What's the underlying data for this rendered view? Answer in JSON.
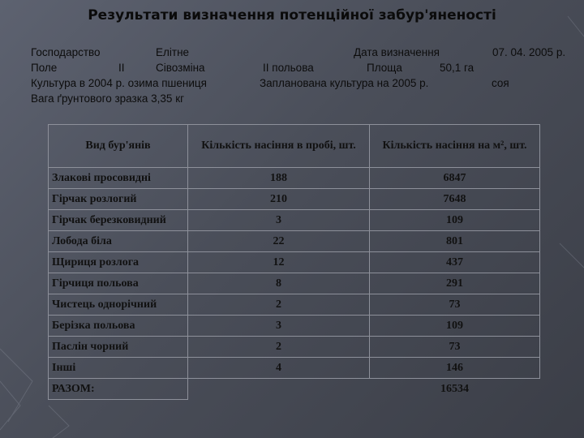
{
  "title": "Результати визначення потенційної забур'яненості",
  "info": {
    "farm_label": "Господарство",
    "farm_value": "Елітне",
    "date_label": "Дата визначення",
    "date_value": "07. 04. 2005 р.",
    "field_label": "Поле",
    "field_number": "ІІ",
    "rotation_label": "Сівозміна",
    "rotation_value": "ІІ польова",
    "area_label": "Площа",
    "area_value": "50,1 га",
    "crop_2004": "Культура в 2004 р. озима пшениця",
    "crop_2005_label": "Запланована культура на 2005 р.",
    "crop_2005_value": "соя",
    "sample_weight": "Вага ґрунтового зразка 3,35 кг"
  },
  "table": {
    "headers": [
      "Вид бур'янів",
      "Кількість насіння в пробі, шт.",
      "Кількість насіння на м², шт."
    ],
    "rows": [
      [
        "Злакові просовидні",
        "188",
        "6847"
      ],
      [
        "Гірчак розлогий",
        "210",
        "7648"
      ],
      [
        "Гірчак березковидний",
        "3",
        "109"
      ],
      [
        "Лобода біла",
        "22",
        "801"
      ],
      [
        "Щириця розлога",
        "12",
        "437"
      ],
      [
        "Гірчиця польова",
        "8",
        "291"
      ],
      [
        "Чистець однорічний",
        "2",
        "73"
      ],
      [
        "Берізка польова",
        "3",
        "109"
      ],
      [
        "Паслін чорний",
        "2",
        "73"
      ],
      [
        "Інші",
        "4",
        "146"
      ]
    ],
    "total": [
      "РАЗОМ:",
      "",
      "16534"
    ]
  }
}
